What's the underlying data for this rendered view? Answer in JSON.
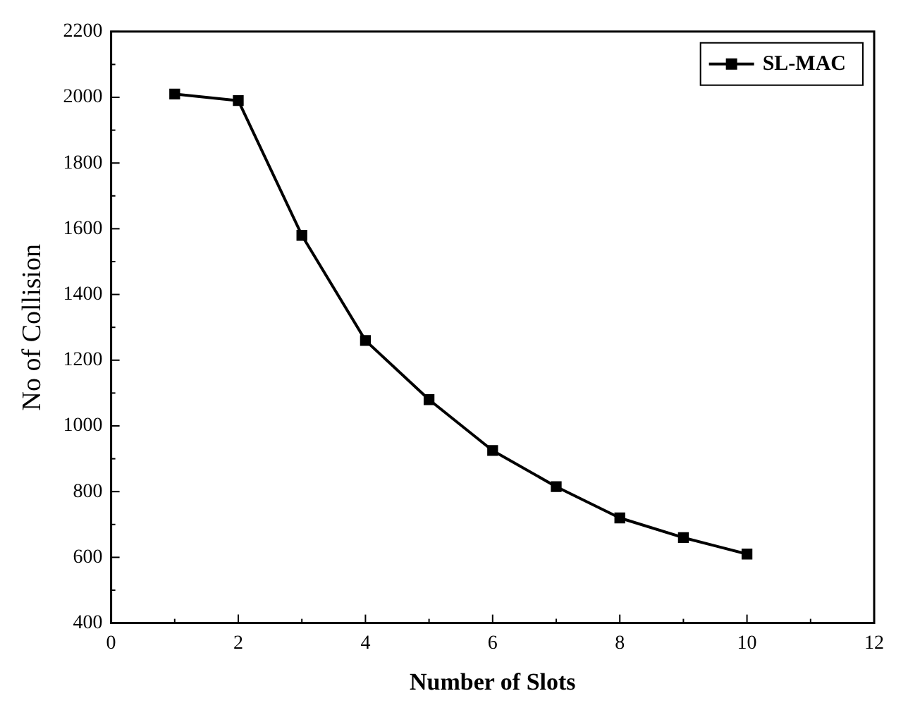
{
  "chart_data": {
    "type": "line",
    "xlabel": "Number of Slots",
    "ylabel": "No of Collision",
    "x": [
      1,
      2,
      3,
      4,
      5,
      6,
      7,
      8,
      9,
      10
    ],
    "series": [
      {
        "name": "SL-MAC",
        "color": "#000000",
        "values": [
          2010,
          1990,
          1580,
          1260,
          1080,
          925,
          815,
          720,
          660,
          610
        ]
      }
    ],
    "xlim": [
      0,
      12
    ],
    "xticks": [
      0,
      2,
      4,
      6,
      8,
      10,
      12
    ],
    "ylim": [
      400,
      2200
    ],
    "yticks": [
      400,
      600,
      800,
      1000,
      1200,
      1400,
      1600,
      1800,
      2000,
      2200
    ],
    "grid": false,
    "legend": "top right",
    "marker": "square",
    "line_style": "solid"
  }
}
